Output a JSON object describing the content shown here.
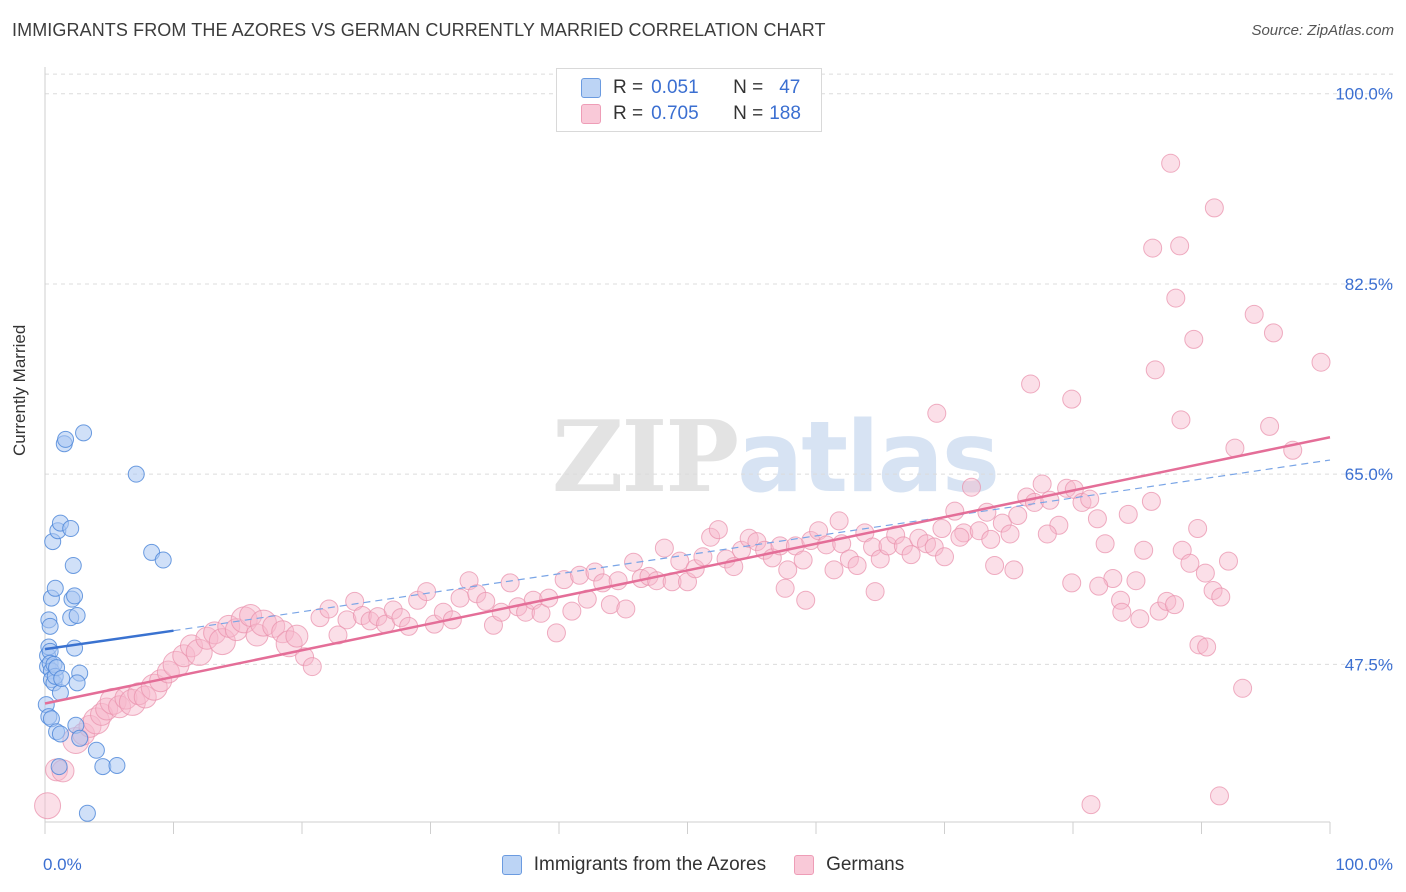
{
  "title": "IMMIGRANTS FROM THE AZORES VS GERMAN CURRENTLY MARRIED CORRELATION CHART",
  "source": "Source: ZipAtlas.com",
  "watermark": {
    "zip": "ZIP",
    "atlas": "atlas"
  },
  "legend_top": [
    {
      "r_label": "R =",
      "r_value": "0.051",
      "n_label": "N =",
      "n_value": "47",
      "color": "#a9c6f2"
    },
    {
      "r_label": "R =",
      "r_value": "0.705",
      "n_label": "N =",
      "n_value": "188",
      "color": "#f6b8cb"
    }
  ],
  "legend_bottom": [
    {
      "label": "Immigrants from the Azores",
      "color": "#a9c6f2"
    },
    {
      "label": "Germans",
      "color": "#f6b8cb"
    }
  ],
  "chart_data": {
    "type": "scatter",
    "title": "IMMIGRANTS FROM THE AZORES VS GERMAN CURRENTLY MARRIED CORRELATION CHART",
    "xlabel": "",
    "ylabel": "Currently Married",
    "xlim": [
      0,
      100
    ],
    "ylim": [
      33,
      102
    ],
    "x_tick_labels": [
      "0.0%",
      "100.0%"
    ],
    "y_ticks": [
      47.5,
      65.0,
      82.5,
      100.0
    ],
    "y_tick_labels": [
      "47.5%",
      "65.0%",
      "82.5%",
      "100.0%"
    ],
    "grid": true,
    "colors": {
      "azores_fill": "#a9c6f2",
      "azores_stroke": "#4a84d8",
      "azores_line": "#3a72d0",
      "germans_fill": "#f6b8cb",
      "germans_stroke": "#e993ae",
      "germans_line": "#e46e98"
    },
    "series": [
      {
        "name": "Immigrants from the Azores",
        "R": 0.051,
        "N": 47,
        "trend": {
          "x0": 0,
          "y0": 48.9,
          "x1": 10,
          "y1": 50.6,
          "dashed_extension_to": [
            100,
            66.3
          ]
        },
        "points": [
          [
            0.3,
            51.6
          ],
          [
            0.4,
            51.0
          ],
          [
            0.5,
            53.6
          ],
          [
            0.8,
            54.5
          ],
          [
            0.6,
            58.8
          ],
          [
            1.0,
            59.8
          ],
          [
            1.2,
            60.5
          ],
          [
            1.5,
            67.8
          ],
          [
            1.6,
            68.2
          ],
          [
            2.0,
            60.0
          ],
          [
            2.2,
            56.6
          ],
          [
            2.1,
            53.5
          ],
          [
            2.3,
            53.8
          ],
          [
            2.0,
            51.8
          ],
          [
            2.5,
            52.0
          ],
          [
            3.0,
            68.8
          ],
          [
            7.1,
            65.0
          ],
          [
            8.3,
            57.8
          ],
          [
            9.2,
            57.1
          ],
          [
            0.2,
            47.3
          ],
          [
            0.2,
            48.3
          ],
          [
            0.3,
            49.1
          ],
          [
            0.4,
            48.7
          ],
          [
            0.4,
            47.6
          ],
          [
            0.5,
            46.9
          ],
          [
            0.5,
            46.1
          ],
          [
            0.7,
            47.5
          ],
          [
            0.7,
            45.8
          ],
          [
            0.8,
            46.4
          ],
          [
            0.9,
            47.2
          ],
          [
            1.2,
            44.9
          ],
          [
            1.3,
            46.2
          ],
          [
            2.3,
            49.0
          ],
          [
            2.7,
            46.7
          ],
          [
            2.5,
            45.8
          ],
          [
            0.1,
            43.8
          ],
          [
            0.3,
            42.7
          ],
          [
            0.5,
            42.5
          ],
          [
            0.9,
            41.3
          ],
          [
            1.2,
            41.1
          ],
          [
            2.4,
            41.9
          ],
          [
            2.7,
            40.7
          ],
          [
            4.0,
            39.6
          ],
          [
            4.5,
            38.1
          ],
          [
            5.6,
            38.2
          ],
          [
            1.1,
            38.1
          ],
          [
            3.3,
            33.8
          ]
        ]
      },
      {
        "name": "Germans",
        "R": 0.705,
        "N": 188,
        "trend": {
          "x0": 0,
          "y0": 43.9,
          "x1": 100,
          "y1": 68.4
        },
        "points": [
          [
            0.2,
            34.5
          ],
          [
            0.9,
            37.8
          ],
          [
            1.4,
            37.7
          ],
          [
            2.4,
            40.5
          ],
          [
            3.0,
            41.1
          ],
          [
            3.5,
            41.8
          ],
          [
            4.0,
            42.3
          ],
          [
            4.4,
            42.9
          ],
          [
            4.8,
            43.4
          ],
          [
            5.3,
            44.1
          ],
          [
            5.8,
            43.6
          ],
          [
            6.3,
            44.4
          ],
          [
            6.8,
            44.0
          ],
          [
            7.3,
            44.8
          ],
          [
            7.8,
            44.5
          ],
          [
            8.5,
            45.4
          ],
          [
            9.0,
            46.0
          ],
          [
            9.6,
            46.8
          ],
          [
            10.2,
            47.5
          ],
          [
            10.8,
            48.3
          ],
          [
            11.4,
            49.2
          ],
          [
            12.0,
            48.6
          ],
          [
            12.6,
            49.9
          ],
          [
            13.2,
            50.4
          ],
          [
            13.8,
            49.6
          ],
          [
            14.3,
            51.0
          ],
          [
            14.9,
            50.7
          ],
          [
            15.5,
            51.6
          ],
          [
            16.0,
            52.0
          ],
          [
            16.5,
            50.2
          ],
          [
            17.0,
            51.3
          ],
          [
            17.8,
            51.0
          ],
          [
            18.5,
            50.5
          ],
          [
            19.0,
            49.4
          ],
          [
            19.6,
            50.1
          ],
          [
            20.2,
            48.2
          ],
          [
            20.8,
            47.3
          ],
          [
            21.4,
            51.8
          ],
          [
            22.1,
            52.6
          ],
          [
            22.8,
            50.2
          ],
          [
            23.5,
            51.6
          ],
          [
            24.1,
            53.3
          ],
          [
            24.7,
            52.0
          ],
          [
            25.3,
            51.5
          ],
          [
            25.9,
            51.9
          ],
          [
            26.5,
            51.2
          ],
          [
            27.1,
            52.5
          ],
          [
            27.7,
            51.8
          ],
          [
            28.3,
            51.0
          ],
          [
            29.0,
            53.4
          ],
          [
            29.7,
            54.2
          ],
          [
            30.3,
            51.2
          ],
          [
            31.0,
            52.3
          ],
          [
            31.7,
            51.6
          ],
          [
            32.3,
            53.6
          ],
          [
            33.0,
            55.2
          ],
          [
            33.6,
            54.0
          ],
          [
            34.3,
            53.3
          ],
          [
            34.9,
            51.1
          ],
          [
            35.5,
            52.3
          ],
          [
            36.2,
            55.0
          ],
          [
            36.8,
            52.8
          ],
          [
            37.4,
            52.3
          ],
          [
            38.0,
            53.4
          ],
          [
            38.6,
            52.2
          ],
          [
            39.2,
            53.6
          ],
          [
            39.8,
            50.4
          ],
          [
            40.4,
            55.3
          ],
          [
            41.0,
            52.4
          ],
          [
            41.6,
            55.7
          ],
          [
            42.2,
            53.5
          ],
          [
            42.8,
            56.0
          ],
          [
            43.4,
            55.0
          ],
          [
            44.0,
            53.0
          ],
          [
            44.6,
            55.2
          ],
          [
            45.2,
            52.6
          ],
          [
            45.8,
            56.9
          ],
          [
            46.4,
            55.4
          ],
          [
            47.0,
            55.6
          ],
          [
            47.6,
            55.2
          ],
          [
            48.2,
            58.2
          ],
          [
            48.8,
            55.1
          ],
          [
            49.4,
            57.0
          ],
          [
            50.0,
            55.1
          ],
          [
            50.6,
            56.3
          ],
          [
            51.2,
            57.4
          ],
          [
            51.8,
            59.2
          ],
          [
            52.4,
            59.9
          ],
          [
            53.0,
            57.2
          ],
          [
            53.6,
            56.5
          ],
          [
            54.2,
            58.0
          ],
          [
            54.8,
            59.1
          ],
          [
            55.4,
            58.8
          ],
          [
            56.0,
            58.0
          ],
          [
            56.6,
            57.3
          ],
          [
            57.2,
            58.4
          ],
          [
            57.8,
            56.2
          ],
          [
            58.4,
            58.4
          ],
          [
            59.0,
            57.1
          ],
          [
            59.6,
            58.9
          ],
          [
            60.2,
            59.8
          ],
          [
            60.8,
            58.5
          ],
          [
            61.4,
            56.2
          ],
          [
            62.0,
            58.6
          ],
          [
            62.6,
            57.2
          ],
          [
            63.2,
            56.6
          ],
          [
            63.8,
            59.6
          ],
          [
            64.4,
            58.3
          ],
          [
            65.0,
            57.2
          ],
          [
            65.6,
            58.4
          ],
          [
            66.2,
            59.4
          ],
          [
            66.8,
            58.4
          ],
          [
            67.4,
            57.6
          ],
          [
            68.0,
            59.1
          ],
          [
            68.6,
            58.6
          ],
          [
            69.2,
            58.3
          ],
          [
            70.0,
            57.4
          ],
          [
            70.8,
            61.6
          ],
          [
            71.5,
            59.6
          ],
          [
            72.1,
            63.8
          ],
          [
            72.7,
            59.8
          ],
          [
            73.3,
            61.5
          ],
          [
            73.9,
            56.6
          ],
          [
            74.5,
            60.5
          ],
          [
            75.1,
            59.5
          ],
          [
            75.7,
            61.2
          ],
          [
            76.4,
            62.9
          ],
          [
            77.0,
            62.4
          ],
          [
            77.6,
            64.1
          ],
          [
            78.2,
            62.6
          ],
          [
            78.9,
            60.3
          ],
          [
            79.5,
            63.7
          ],
          [
            80.1,
            63.6
          ],
          [
            80.7,
            62.4
          ],
          [
            81.3,
            62.7
          ],
          [
            81.9,
            60.9
          ],
          [
            82.5,
            58.6
          ],
          [
            83.1,
            55.4
          ],
          [
            83.7,
            53.4
          ],
          [
            84.3,
            61.3
          ],
          [
            84.9,
            55.2
          ],
          [
            85.5,
            58.0
          ],
          [
            86.1,
            62.5
          ],
          [
            86.7,
            52.4
          ],
          [
            87.3,
            53.3
          ],
          [
            87.9,
            53.0
          ],
          [
            88.5,
            58.0
          ],
          [
            89.1,
            56.8
          ],
          [
            89.7,
            60.0
          ],
          [
            90.3,
            55.9
          ],
          [
            90.9,
            54.3
          ],
          [
            91.5,
            53.7
          ],
          [
            92.1,
            57.0
          ],
          [
            57.6,
            54.5
          ],
          [
            59.2,
            53.4
          ],
          [
            61.8,
            60.7
          ],
          [
            64.6,
            54.2
          ],
          [
            69.8,
            60.0
          ],
          [
            71.2,
            59.2
          ],
          [
            73.6,
            59.0
          ],
          [
            75.4,
            56.2
          ],
          [
            78.0,
            59.5
          ],
          [
            79.9,
            55.0
          ],
          [
            82.0,
            54.7
          ],
          [
            83.8,
            52.3
          ],
          [
            85.2,
            51.7
          ],
          [
            89.8,
            49.3
          ],
          [
            90.4,
            49.1
          ],
          [
            69.4,
            70.6
          ],
          [
            76.7,
            73.3
          ],
          [
            79.9,
            71.9
          ],
          [
            88.4,
            70.0
          ],
          [
            95.3,
            69.4
          ],
          [
            97.1,
            67.2
          ],
          [
            99.3,
            75.3
          ],
          [
            86.4,
            74.6
          ],
          [
            88.0,
            81.2
          ],
          [
            89.4,
            77.4
          ],
          [
            94.1,
            79.7
          ],
          [
            95.6,
            78.0
          ],
          [
            87.6,
            93.6
          ],
          [
            91.0,
            89.5
          ],
          [
            86.2,
            85.8
          ],
          [
            88.3,
            86.0
          ],
          [
            92.6,
            67.4
          ],
          [
            81.4,
            34.6
          ],
          [
            91.4,
            35.4
          ],
          [
            93.2,
            45.3
          ]
        ]
      }
    ]
  }
}
